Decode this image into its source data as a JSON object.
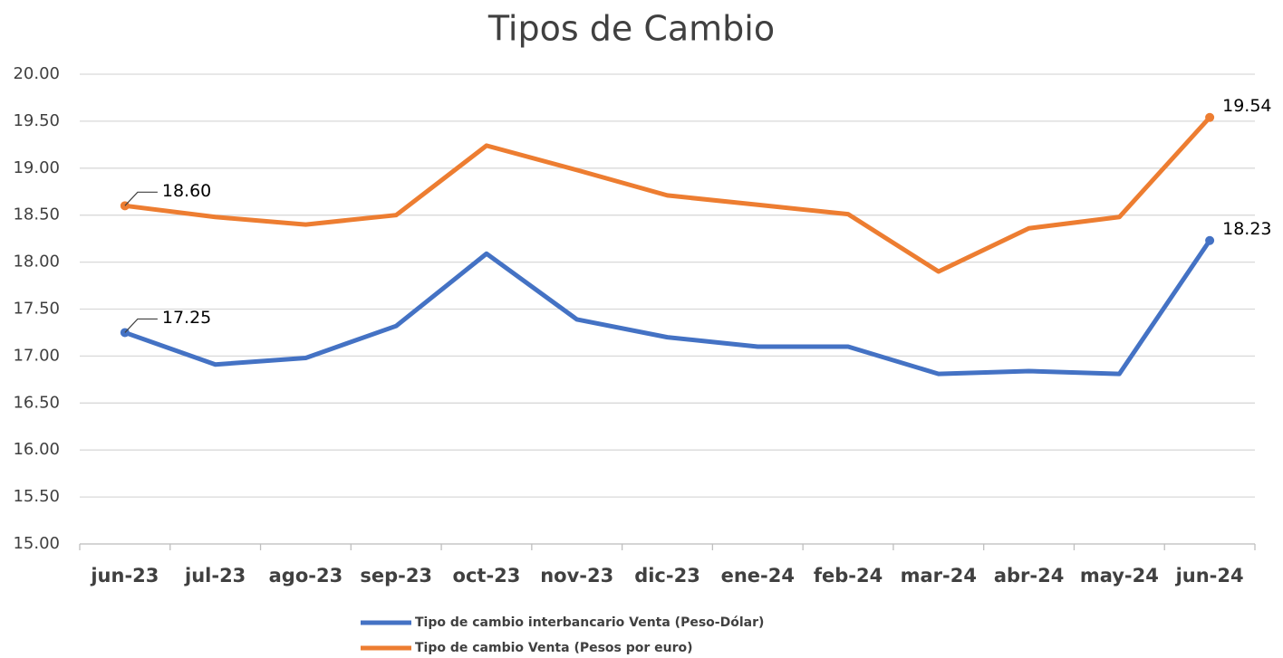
{
  "chart_data": {
    "type": "line",
    "title": "Tipos de Cambio",
    "categories": [
      "jun-23",
      "jul-23",
      "ago-23",
      "sep-23",
      "oct-23",
      "nov-23",
      "dic-23",
      "ene-24",
      "feb-24",
      "mar-24",
      "abr-24",
      "may-24",
      "jun-24"
    ],
    "series": [
      {
        "name": "Tipo de cambio interbancario Venta (Peso-Dólar)",
        "color": "#4472c4",
        "values": [
          17.25,
          16.91,
          16.98,
          17.32,
          18.09,
          17.39,
          17.2,
          17.1,
          17.1,
          16.81,
          16.84,
          16.81,
          18.23
        ],
        "value_labels": [
          "17.25",
          null,
          null,
          null,
          null,
          null,
          null,
          null,
          null,
          null,
          null,
          null,
          "18.23"
        ]
      },
      {
        "name": "Tipo de cambio Venta (Pesos por euro)",
        "color": "#ed7d31",
        "values": [
          18.6,
          18.48,
          18.4,
          18.5,
          19.24,
          18.98,
          18.71,
          18.61,
          18.51,
          17.9,
          18.36,
          18.48,
          19.54
        ],
        "value_labels": [
          "18.60",
          null,
          null,
          null,
          null,
          null,
          null,
          null,
          null,
          null,
          null,
          null,
          "19.54"
        ]
      }
    ],
    "ylim": [
      15,
      20
    ],
    "yticks": [
      {
        "value": 15,
        "label": "15.00"
      },
      {
        "value": 15.5,
        "label": "15.50"
      },
      {
        "value": 16,
        "label": "16.00"
      },
      {
        "value": 16.5,
        "label": "16.50"
      },
      {
        "value": 17,
        "label": "17.00"
      },
      {
        "value": 17.5,
        "label": "17.50"
      },
      {
        "value": 18,
        "label": "18.00"
      },
      {
        "value": 18.5,
        "label": "18.50"
      },
      {
        "value": 19,
        "label": "19.00"
      },
      {
        "value": 19.5,
        "label": "19.50"
      },
      {
        "value": 20,
        "label": "20.00"
      }
    ],
    "grid": true,
    "legend": "bottom"
  }
}
